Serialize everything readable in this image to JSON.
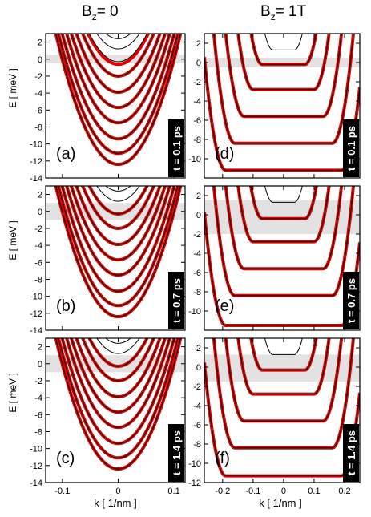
{
  "columns": [
    {
      "title_main": "B",
      "title_sub": "z",
      "title_rest": "= 0"
    },
    {
      "title_main": "B",
      "title_sub": "z",
      "title_rest": "= 1T"
    }
  ],
  "ylabel": "E [ meV ]",
  "xlabel": "k [ 1/nm ]",
  "chart_data": [
    {
      "type": "line",
      "panel": "(a)",
      "time_label": "t = 0.1 ps",
      "field": "Bz = 0",
      "xlim": [
        -0.13,
        0.12
      ],
      "ylim": [
        -14,
        3
      ],
      "xticks": [
        -0.1,
        0,
        0.1
      ],
      "yticks": [
        2,
        0,
        -2,
        -4,
        -6,
        -8,
        -10,
        -12,
        -14
      ],
      "xticklabels": [
        "",
        "",
        ""
      ],
      "shaded_band": [
        -0.5,
        0.5
      ],
      "band_minima": [
        2.4,
        1.2,
        -0.3,
        -2.0,
        -3.9,
        -5.7,
        -7.5,
        -9.4,
        -11.1,
        -12.4
      ],
      "red_band_minima": [
        -0.6,
        -2.0,
        -3.9,
        -5.7,
        -7.5,
        -9.4,
        -11.1,
        -12.4
      ],
      "curvature_meV_nm2": 1230
    },
    {
      "type": "line",
      "panel": "(b)",
      "time_label": "t = 0.7 ps",
      "field": "Bz = 0",
      "xlim": [
        -0.13,
        0.12
      ],
      "ylim": [
        -14,
        3
      ],
      "xticks": [
        -0.1,
        0,
        0.1
      ],
      "yticks": [
        2,
        0,
        -2,
        -4,
        -6,
        -8,
        -10,
        -12,
        -14
      ],
      "xticklabels": [
        "",
        "",
        ""
      ],
      "shaded_band": [
        -1.0,
        1.0
      ],
      "band_minima": [
        2.4,
        1.2,
        -0.3,
        -2.0,
        -3.9,
        -5.7,
        -7.5,
        -9.4,
        -11.1,
        -12.4
      ],
      "red_band_minima": [
        -0.3,
        -2.0,
        -3.9,
        -5.7,
        -7.5,
        -9.4,
        -11.1,
        -12.4
      ],
      "curvature_meV_nm2": 1230
    },
    {
      "type": "line",
      "panel": "(c)",
      "time_label": "t = 1.4 ps",
      "field": "Bz = 0",
      "xlim": [
        -0.13,
        0.12
      ],
      "ylim": [
        -14,
        3
      ],
      "xticks": [
        -0.1,
        0,
        0.1
      ],
      "yticks": [
        2,
        0,
        -2,
        -4,
        -6,
        -8,
        -10,
        -12,
        -14
      ],
      "xticklabels": [
        "-0.1",
        "0",
        "0.1"
      ],
      "shaded_band": [
        -1.0,
        1.0
      ],
      "band_minima": [
        2.4,
        1.2,
        -0.3,
        -2.0,
        -3.9,
        -5.7,
        -7.5,
        -9.4,
        -11.1,
        -12.4
      ],
      "red_band_minima": [
        -0.3,
        -2.0,
        -3.9,
        -5.7,
        -7.5,
        -9.4,
        -11.1,
        -12.4
      ],
      "curvature_meV_nm2": 1230
    },
    {
      "type": "line",
      "panel": "(d)",
      "time_label": "t = 0.1 ps",
      "field": "Bz = 1T",
      "xlim": [
        -0.26,
        0.25
      ],
      "ylim": [
        -12,
        3
      ],
      "xticks": [
        -0.2,
        -0.1,
        0,
        0.1,
        0.2
      ],
      "yticks": [
        2,
        0,
        -2,
        -4,
        -6,
        -8,
        -10
      ],
      "xticklabels": [
        "",
        "",
        "",
        "",
        ""
      ],
      "shaded_band": [
        -0.5,
        0.5
      ],
      "band_minima": [
        1.3,
        -0.2,
        -2.8,
        -5.6,
        -8.4,
        -11.2
      ],
      "red_band_minima": [
        -0.2,
        -2.8,
        -5.6,
        -8.4,
        -11.2
      ],
      "landau_halfwidth_nm": [
        0.035,
        0.07,
        0.1,
        0.13,
        0.16,
        0.19
      ]
    },
    {
      "type": "line",
      "panel": "(e)",
      "time_label": "t = 0.7 ps",
      "field": "Bz = 1T",
      "xlim": [
        -0.26,
        0.25
      ],
      "ylim": [
        -12,
        3
      ],
      "xticks": [
        -0.2,
        -0.1,
        0,
        0.1,
        0.2
      ],
      "yticks": [
        2,
        0,
        -2,
        -4,
        -6,
        -8,
        -10
      ],
      "xticklabels": [
        "",
        "",
        "",
        "",
        ""
      ],
      "shaded_band": [
        -2.0,
        1.5
      ],
      "band_minima": [
        1.3,
        -0.4,
        -2.8,
        -5.6,
        -8.4,
        -11.5
      ],
      "red_band_minima": [
        -0.4,
        -2.8,
        -5.6,
        -8.4,
        -11.5
      ],
      "landau_halfwidth_nm": [
        0.035,
        0.07,
        0.1,
        0.13,
        0.16,
        0.19
      ]
    },
    {
      "type": "line",
      "panel": "(f)",
      "time_label": "t = 1.4 ps",
      "field": "Bz = 1T",
      "xlim": [
        -0.26,
        0.25
      ],
      "ylim": [
        -12,
        3
      ],
      "xticks": [
        -0.2,
        -0.1,
        0,
        0.1,
        0.2
      ],
      "yticks": [
        2,
        0,
        -2,
        -4,
        -6,
        -8,
        -10,
        -12
      ],
      "xticklabels": [
        "-0.2",
        "-0.1",
        "0",
        "0.1",
        "0.2"
      ],
      "shaded_band": [
        -1.5,
        1.3
      ],
      "band_minima": [
        1.3,
        -0.3,
        -2.8,
        -5.6,
        -8.4,
        -11.3
      ],
      "red_band_minima": [
        -0.3,
        -2.8,
        -5.6,
        -8.4,
        -11.3
      ],
      "landau_halfwidth_nm": [
        0.035,
        0.07,
        0.1,
        0.13,
        0.16,
        0.19
      ]
    }
  ]
}
